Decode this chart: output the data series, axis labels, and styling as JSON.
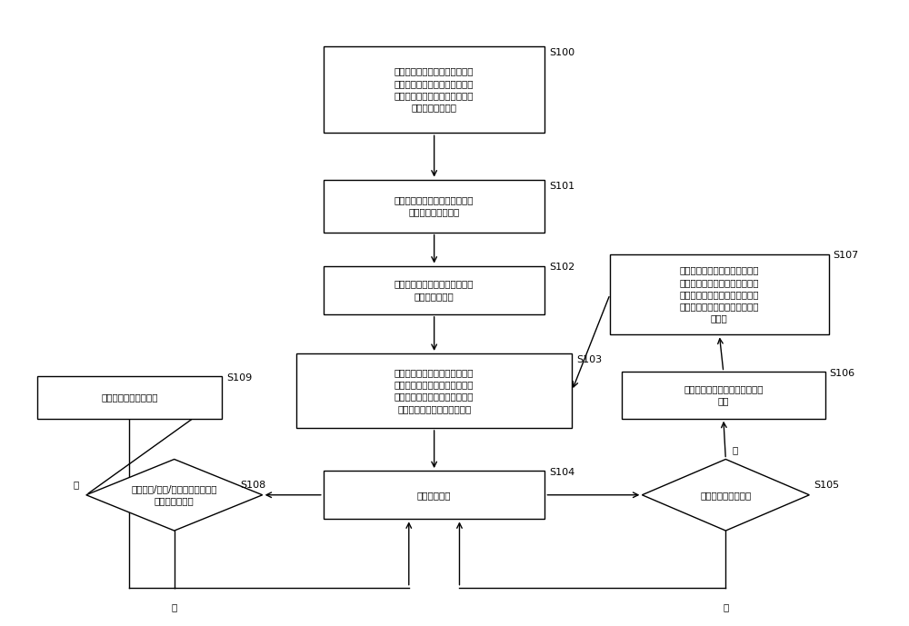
{
  "bg_color": "#ffffff",
  "line_color": "#000000",
  "font_size": 7.5,
  "label_font_size": 8,
  "s100_text": "创建直方图特征模板库，每个直\n方图特征模板设置若干个映射函\n数和一个默认映射函数，初始化\n设置默认映射函数",
  "s101_text": "获取用户输入的医学图像新序列\n，计算其直方图特征",
  "s102_text": "直方图特征匹配，寻找到匹配的\n直方图特征模板",
  "s103_text": "查找匹配直方图特征模板的默认\n映射函数，使用该映射函数进行\n三维重建，对匹配直方图特征模\n板的映射函数进行排序供选择",
  "s104_text": "监控用户操作",
  "s105_text": "是否选取了映射函数",
  "s106_text": "根据选择的映射函数，进行三维\n重建",
  "s107_text": "更新该匹配直方图特征模板中映\n射函数的使用频率，更新排序结\n果，设置使用频率最高的映射函\n数为该直方图特征模板的默认映\n射函数",
  "s108_text": "是否新增/修改/删除了直方图特征\n模板或映射函数",
  "s109_text": "更新直方图特征模板库"
}
